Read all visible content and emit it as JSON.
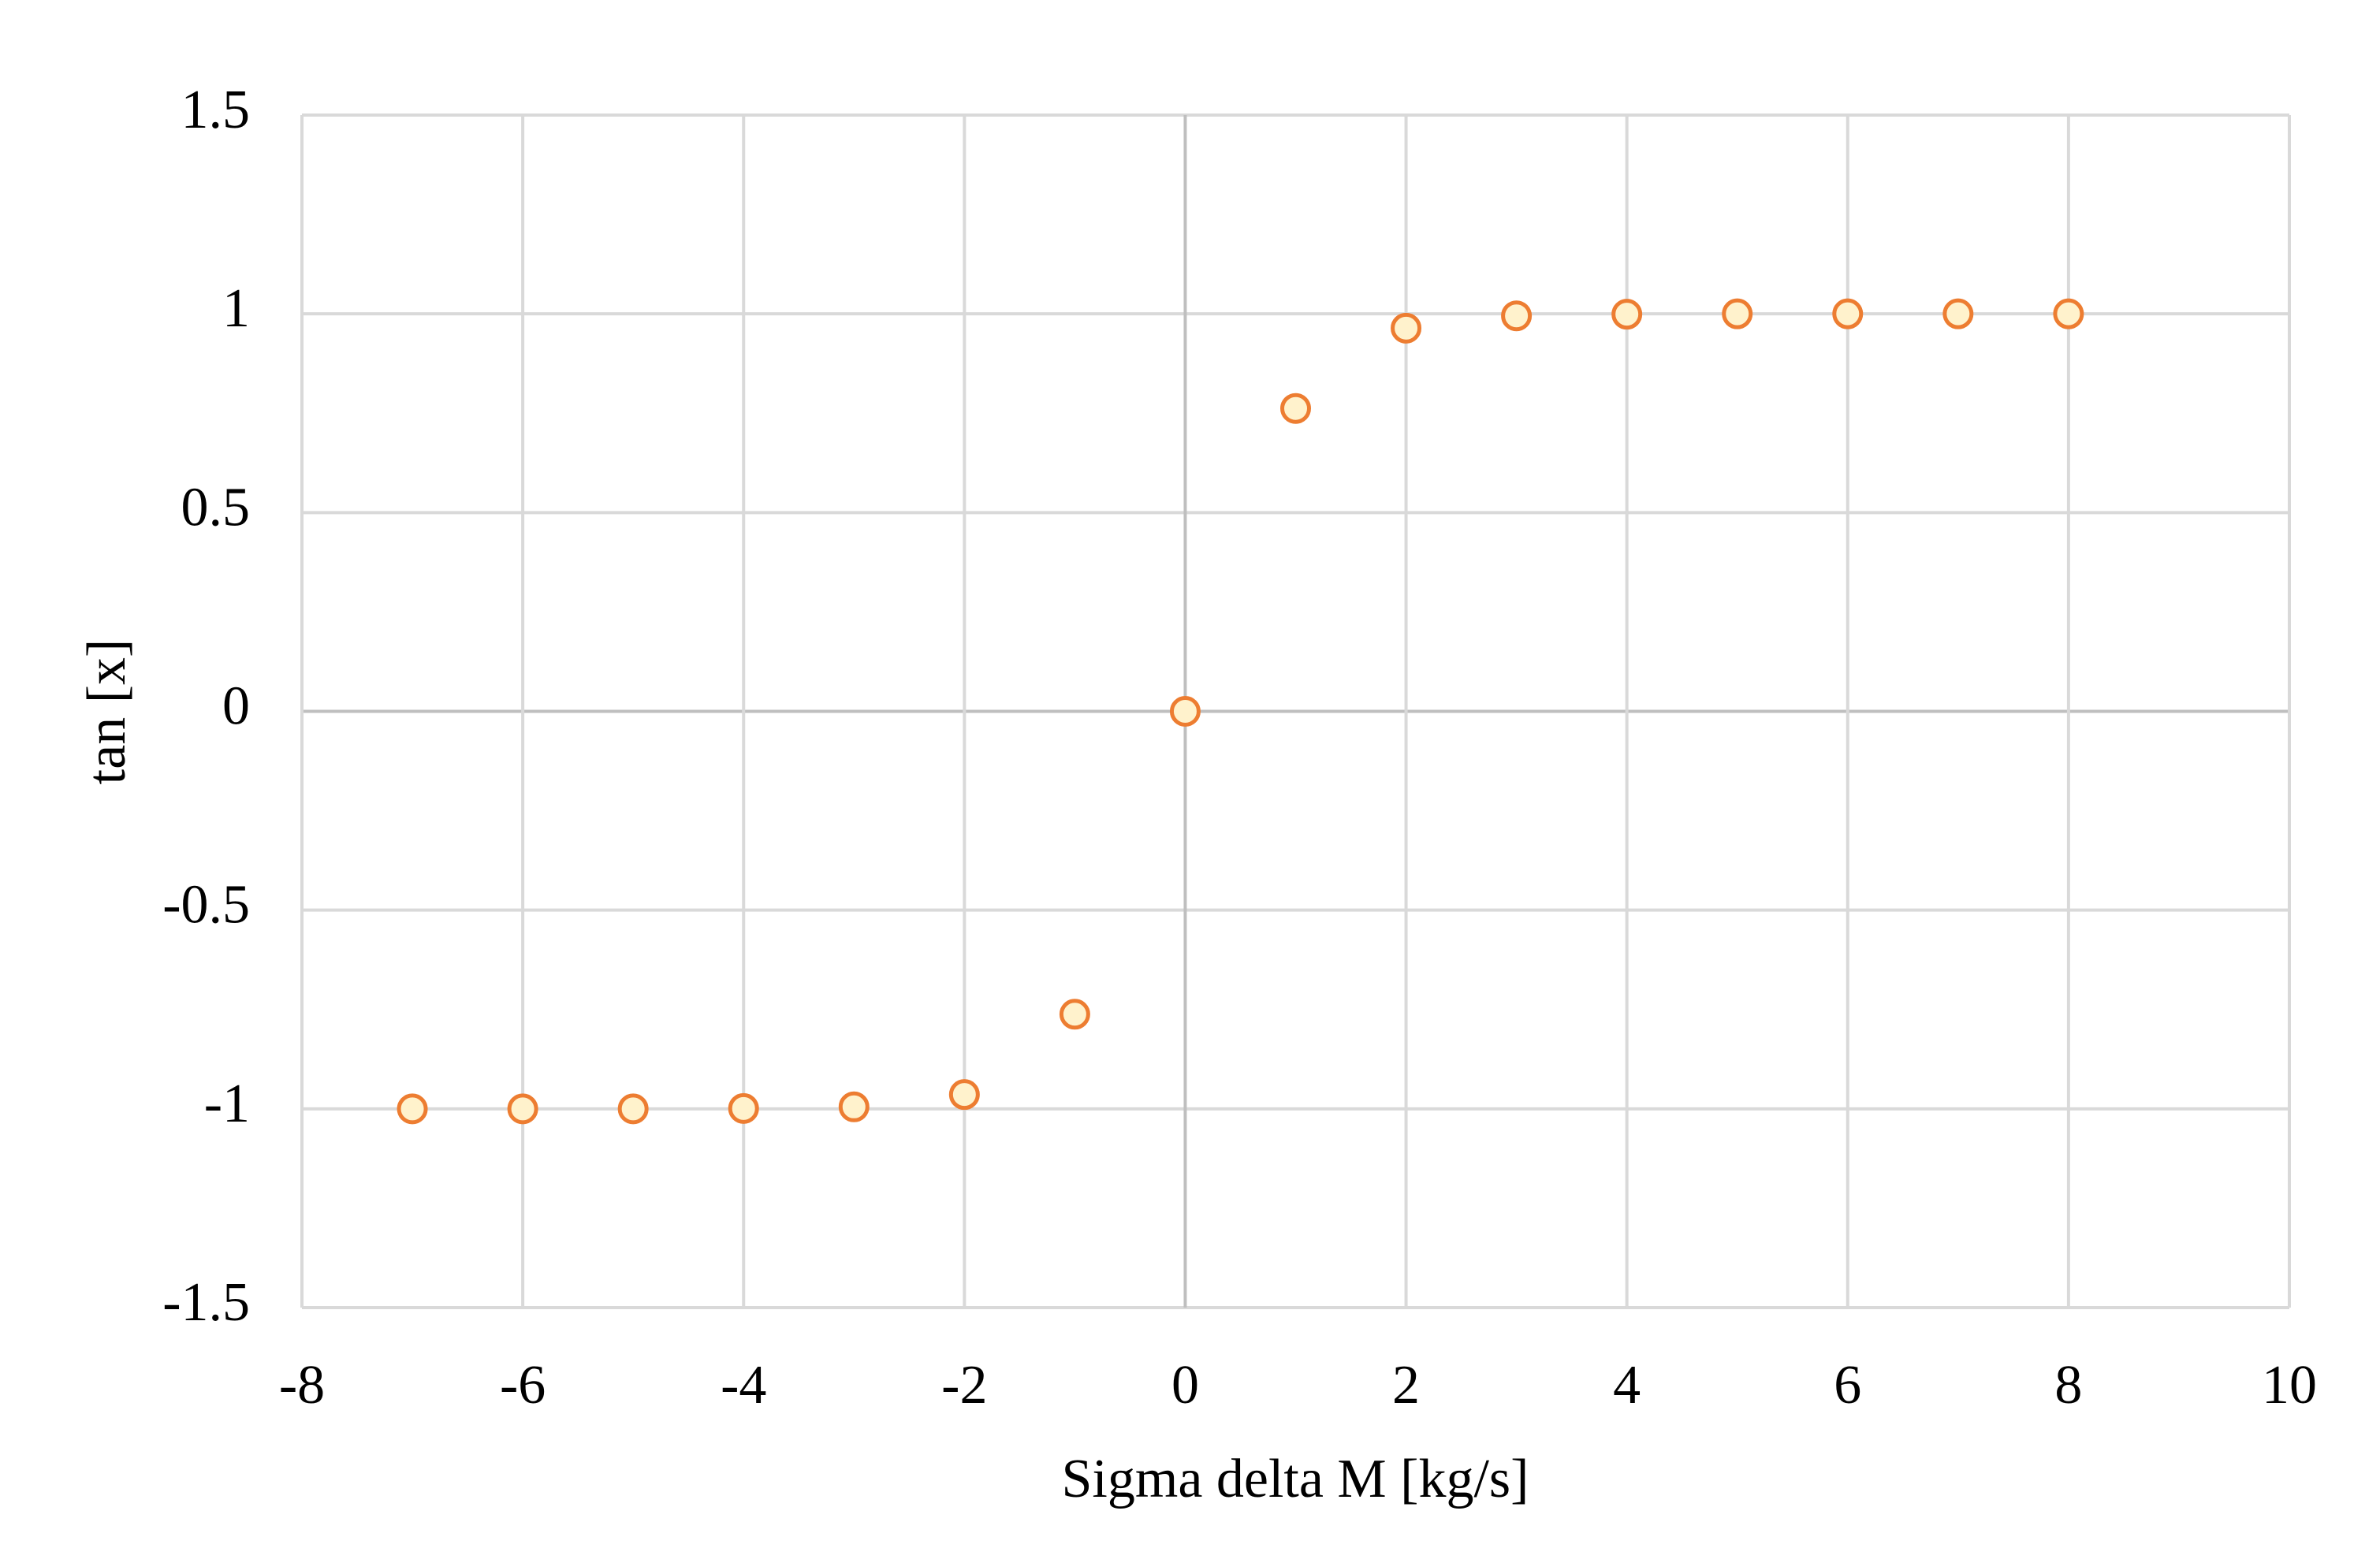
{
  "chart_data": {
    "type": "scatter",
    "x_label": "Sigma delta M [kg/s]",
    "y_label": "tan [x]",
    "x": [
      -7,
      -6,
      -5,
      -4,
      -3,
      -2,
      -1,
      0,
      1,
      2,
      3,
      4,
      5,
      6,
      7,
      8
    ],
    "values": [
      -1,
      -1,
      -1,
      -0.999,
      -0.995,
      -0.964,
      -0.762,
      0,
      0.762,
      0.964,
      0.995,
      0.999,
      1,
      1,
      1,
      1
    ],
    "color": "#ed7d31",
    "marker_fill": "#fff2cc",
    "xlim": [
      -8,
      10
    ],
    "xticks": [
      -8,
      -6,
      -4,
      -2,
      0,
      2,
      4,
      6,
      8,
      10
    ],
    "ylim": [
      -1.5,
      1.5
    ],
    "yticks": [
      -1.5,
      -1,
      -0.5,
      0,
      0.5,
      1,
      1.5
    ],
    "grid": true
  }
}
